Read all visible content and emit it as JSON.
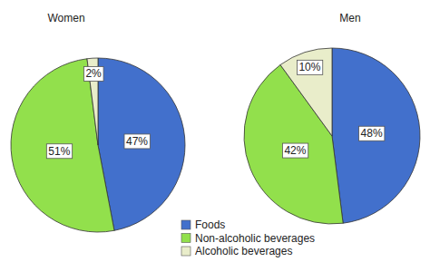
{
  "chart_data": {
    "type": "pie",
    "categories": [
      "Foods",
      "Non-alcoholic beverages",
      "Alcoholic beverages"
    ],
    "colors": [
      "#4270cc",
      "#92e04c",
      "#e9edca"
    ],
    "series": [
      {
        "name": "Women",
        "values": [
          47,
          51,
          2
        ],
        "value_labels": [
          "47%",
          "51%",
          "2%"
        ]
      },
      {
        "name": "Men",
        "values": [
          48,
          42,
          10
        ],
        "value_labels": [
          "48%",
          "42%",
          "10%"
        ]
      }
    ],
    "data_labels": true,
    "legend": "bottom"
  }
}
